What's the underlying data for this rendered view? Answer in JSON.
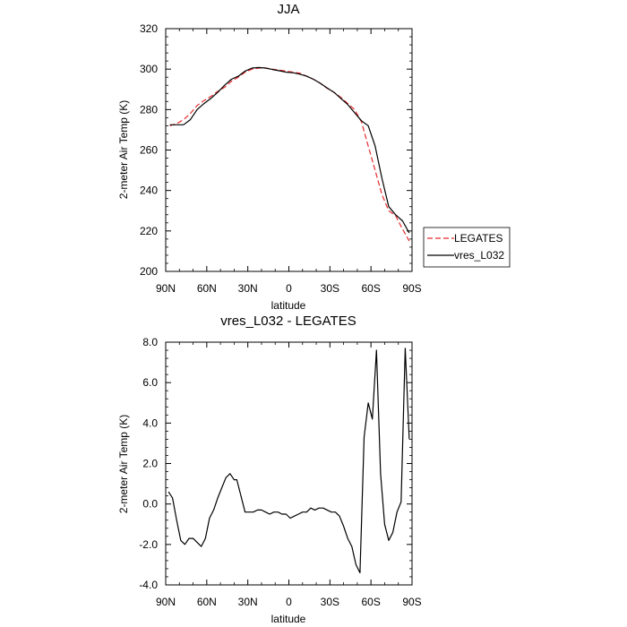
{
  "chart_data": [
    {
      "type": "line",
      "title": "JJA",
      "xlabel": "latitude",
      "ylabel": "2-meter Air Temp (K)",
      "xlim": [
        90,
        -90
      ],
      "ylim": [
        200,
        320
      ],
      "x_ticks": [
        90,
        60,
        30,
        0,
        -30,
        -60,
        -90
      ],
      "x_tick_labels": [
        "90N",
        "60N",
        "30N",
        "0",
        "30S",
        "60S",
        "90S"
      ],
      "y_ticks": [
        200,
        220,
        240,
        260,
        280,
        300,
        320
      ],
      "y_tick_labels": [
        "200",
        "220",
        "240",
        "260",
        "280",
        "300",
        "320"
      ],
      "grid": false,
      "legend_position": "right",
      "series": [
        {
          "name": "LEGATES",
          "color": "#e8292d",
          "style": "dashed",
          "x": [
            87,
            82,
            77,
            72,
            67,
            62,
            57,
            52,
            47,
            42,
            37,
            32,
            27,
            22,
            17,
            12,
            7,
            2,
            -3,
            -8,
            -13,
            -18,
            -23,
            -28,
            -33,
            -38,
            -43,
            -48,
            -53,
            -58,
            -63,
            -68,
            -73,
            -78,
            -83,
            -88
          ],
          "y": [
            272,
            273,
            275,
            278,
            282,
            284.5,
            286.5,
            289,
            291,
            294,
            296,
            298.5,
            300,
            300.5,
            300.5,
            300,
            299.5,
            299,
            298.5,
            298,
            296.5,
            295,
            293,
            290.5,
            288.5,
            286,
            283,
            280,
            274,
            262,
            250,
            238,
            230,
            227.5,
            221,
            215
          ]
        },
        {
          "name": "vres_L032",
          "color": "#000000",
          "style": "solid",
          "x": [
            87,
            82,
            77,
            72,
            67,
            62,
            57,
            52,
            47,
            42,
            37,
            32,
            27,
            22,
            17,
            12,
            7,
            2,
            -3,
            -8,
            -13,
            -18,
            -23,
            -28,
            -33,
            -38,
            -43,
            -48,
            -53,
            -58,
            -63,
            -68,
            -73,
            -78,
            -83,
            -88
          ],
          "y": [
            272.5,
            272.5,
            272.5,
            275,
            280,
            283,
            285.5,
            288.5,
            292,
            295,
            296.5,
            299,
            300.5,
            300.8,
            300.5,
            299.8,
            299.2,
            298.5,
            298.2,
            297.5,
            296.5,
            295,
            293,
            290.7,
            288.5,
            285.5,
            282.5,
            278.5,
            274.5,
            272,
            262,
            246,
            232,
            228,
            225,
            219
          ]
        }
      ]
    },
    {
      "type": "line",
      "title": "vres_L032 - LEGATES",
      "xlabel": "latitude",
      "ylabel": "2-meter Air Temp (K)",
      "xlim": [
        90,
        -90
      ],
      "ylim": [
        -4,
        8
      ],
      "x_ticks": [
        90,
        60,
        30,
        0,
        -30,
        -60,
        -90
      ],
      "x_tick_labels": [
        "90N",
        "60N",
        "30N",
        "0",
        "30S",
        "60S",
        "90S"
      ],
      "y_ticks": [
        -4,
        -2,
        0,
        2,
        4,
        6,
        8
      ],
      "y_tick_labels": [
        "-4.0",
        "-2.0",
        "0.0",
        "2.0",
        "4.0",
        "6.0",
        "8.0"
      ],
      "grid": false,
      "series": [
        {
          "color": "#000000",
          "style": "solid",
          "x": [
            88,
            85,
            82,
            79,
            76,
            73,
            70,
            67,
            64,
            61,
            58,
            55,
            52,
            49,
            46,
            43,
            40,
            38,
            35,
            32,
            29,
            26,
            23,
            20,
            17,
            14,
            11,
            8,
            5,
            2,
            -1,
            -4,
            -7,
            -10,
            -13,
            -16,
            -19,
            -22,
            -25,
            -28,
            -31,
            -34,
            -37,
            -40,
            -43,
            -46,
            -49,
            -52,
            -55,
            -58,
            -61,
            -64,
            -67,
            -70,
            -73,
            -76,
            -79,
            -82,
            -85,
            -88
          ],
          "y": [
            0.6,
            0.3,
            -0.8,
            -1.8,
            -2.0,
            -1.7,
            -1.7,
            -1.9,
            -2.1,
            -1.7,
            -0.7,
            -0.3,
            0.3,
            0.8,
            1.3,
            1.5,
            1.2,
            1.2,
            0.4,
            -0.4,
            -0.4,
            -0.4,
            -0.3,
            -0.3,
            -0.4,
            -0.5,
            -0.4,
            -0.4,
            -0.5,
            -0.5,
            -0.7,
            -0.6,
            -0.5,
            -0.4,
            -0.4,
            -0.2,
            -0.3,
            -0.2,
            -0.2,
            -0.3,
            -0.4,
            -0.4,
            -0.6,
            -1.1,
            -1.7,
            -2.1,
            -3.0,
            -3.4,
            3.3,
            5.0,
            4.2,
            7.6,
            1.5,
            -1.0,
            -1.8,
            -1.4,
            -0.4,
            0.1,
            7.7,
            3.2
          ]
        }
      ]
    }
  ]
}
